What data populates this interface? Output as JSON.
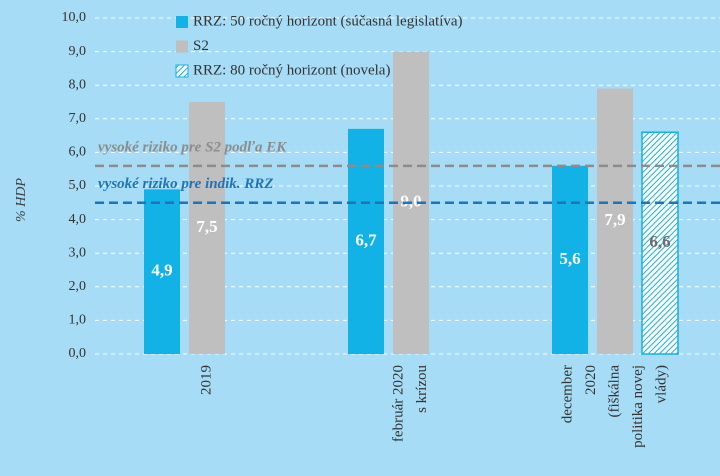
{
  "chart_data": {
    "type": "bar",
    "y_label": "% HDP",
    "categories": [
      [
        "2019"
      ],
      [
        "február 2020",
        "s krízou"
      ],
      [
        "december",
        "2020",
        "(fiškálna",
        "politika novej",
        "vlády)"
      ]
    ],
    "series": [
      {
        "name": "RRZ: 50 ročný horizont (súčasná legislatíva)",
        "color": "#12b2e6",
        "values": [
          4.9,
          6.7,
          5.6
        ],
        "value_labels": [
          "4,9",
          "6,7",
          "5,6"
        ]
      },
      {
        "name": "S2",
        "color": "#bfbfbf",
        "values": [
          7.5,
          9.0,
          7.9
        ],
        "value_labels": [
          "7,5",
          "9,0",
          "7,9"
        ]
      },
      {
        "name": "RRZ: 80 ročný horizont (novela)",
        "color": "#12b2e6",
        "hatch": true,
        "values": [
          null,
          null,
          6.6
        ],
        "value_labels": [
          null,
          null,
          "6,6"
        ]
      }
    ],
    "reference_lines": [
      {
        "label": "vysoké riziko pre S2 podľa EK",
        "value": 5.6,
        "color": "#8c8c8c"
      },
      {
        "label": "vysoké riziko pre indik. RRZ",
        "value": 4.5,
        "color": "#1f73b7"
      }
    ],
    "ylim": [
      0,
      10
    ],
    "yticks": [
      {
        "value": 0,
        "label": "0,0"
      },
      {
        "value": 1,
        "label": "1,0"
      },
      {
        "value": 2,
        "label": "2,0"
      },
      {
        "value": 3,
        "label": "3,0"
      },
      {
        "value": 4,
        "label": "4,0"
      },
      {
        "value": 5,
        "label": "5,0"
      },
      {
        "value": 6,
        "label": "6,0"
      },
      {
        "value": 7,
        "label": "7,0"
      },
      {
        "value": 8,
        "label": "8,0"
      },
      {
        "value": 9,
        "label": "9,0"
      },
      {
        "value": 10,
        "label": "10,0"
      }
    ],
    "grid": true
  }
}
